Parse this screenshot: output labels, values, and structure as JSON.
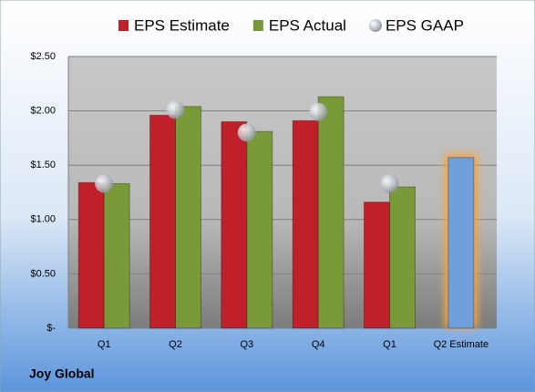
{
  "chart_data": {
    "type": "bar",
    "title": "Joy Global",
    "categories": [
      "Q1",
      "Q2",
      "Q3",
      "Q4",
      "Q1",
      "Q2 Estimate"
    ],
    "series": [
      {
        "name": "EPS Estimate",
        "color": "#c0202a",
        "values": [
          1.34,
          1.96,
          1.9,
          1.91,
          1.16,
          1.57
        ]
      },
      {
        "name": "EPS Actual",
        "color": "#7a9a3a",
        "values": [
          1.33,
          2.04,
          1.81,
          2.13,
          1.3,
          null
        ]
      },
      {
        "name": "EPS GAAP",
        "color": "#b8bcc4",
        "type": "scatter",
        "values": [
          1.33,
          2.01,
          1.8,
          1.99,
          1.33,
          null
        ]
      }
    ],
    "highlight": {
      "color": "#6f9fdc",
      "glow": "#f5a445"
    },
    "ylim": [
      0,
      2.5
    ],
    "yticks": [
      {
        "value": 0,
        "label": "$-"
      },
      {
        "value": 0.5,
        "label": "$0.50"
      },
      {
        "value": 1,
        "label": "$1.00"
      },
      {
        "value": 1.5,
        "label": "$1.50"
      },
      {
        "value": 2,
        "label": "$2.00"
      },
      {
        "value": 2.5,
        "label": "$2.50"
      }
    ],
    "grid": true
  }
}
